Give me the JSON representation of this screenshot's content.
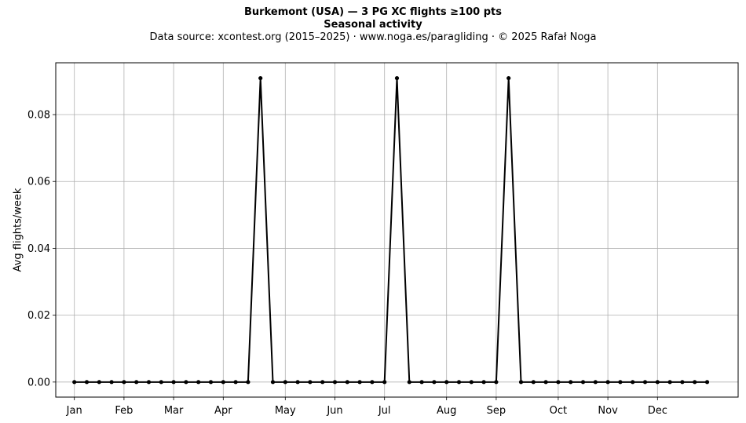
{
  "title": "Burkemont (USA)  —  3 PG XC flights ≥100 pts",
  "subtitle": "Seasonal activity",
  "source_line": "Data source: xcontest.org (2015–2025)  ·  www.noga.es/paragliding  ·  © 2025 Rafał Noga",
  "chart_data": {
    "type": "line",
    "title": "Burkemont (USA)  —  3 PG XC flights ≥100 pts",
    "subtitle": "Seasonal activity",
    "xlabel": "",
    "ylabel": "Avg flights/week",
    "xlim": [
      -1.5,
      53.5
    ],
    "ylim": [
      -0.0045,
      0.0955
    ],
    "grid": true,
    "x_ticks": [
      {
        "x": 0,
        "label": "Jan"
      },
      {
        "x": 4,
        "label": "Feb"
      },
      {
        "x": 8,
        "label": "Mar"
      },
      {
        "x": 12,
        "label": "Apr"
      },
      {
        "x": 17,
        "label": "May"
      },
      {
        "x": 21,
        "label": "Jun"
      },
      {
        "x": 25,
        "label": "Jul"
      },
      {
        "x": 30,
        "label": "Aug"
      },
      {
        "x": 34,
        "label": "Sep"
      },
      {
        "x": 39,
        "label": "Oct"
      },
      {
        "x": 43,
        "label": "Nov"
      },
      {
        "x": 47,
        "label": "Dec"
      }
    ],
    "y_ticks": [
      {
        "y": 0.0,
        "label": "0.00"
      },
      {
        "y": 0.02,
        "label": "0.02"
      },
      {
        "y": 0.04,
        "label": "0.04"
      },
      {
        "y": 0.06,
        "label": "0.06"
      },
      {
        "y": 0.08,
        "label": "0.08"
      }
    ],
    "series": [
      {
        "color": "#000000",
        "x": [
          0,
          1,
          2,
          3,
          4,
          5,
          6,
          7,
          8,
          9,
          10,
          11,
          12,
          13,
          14,
          15,
          16,
          17,
          18,
          19,
          20,
          21,
          22,
          23,
          24,
          25,
          26,
          27,
          28,
          29,
          30,
          31,
          32,
          33,
          34,
          35,
          36,
          37,
          38,
          39,
          40,
          41,
          42,
          43,
          44,
          45,
          46,
          47,
          48,
          49,
          50,
          51
        ],
        "values": [
          0,
          0,
          0,
          0,
          0,
          0,
          0,
          0,
          0,
          0,
          0,
          0,
          0,
          0,
          0,
          0.0909,
          0,
          0,
          0,
          0,
          0,
          0,
          0,
          0,
          0,
          0,
          0.0909,
          0,
          0,
          0,
          0,
          0,
          0,
          0,
          0,
          0.0909,
          0,
          0,
          0,
          0,
          0,
          0,
          0,
          0,
          0,
          0,
          0,
          0,
          0,
          0,
          0,
          0
        ]
      }
    ]
  }
}
